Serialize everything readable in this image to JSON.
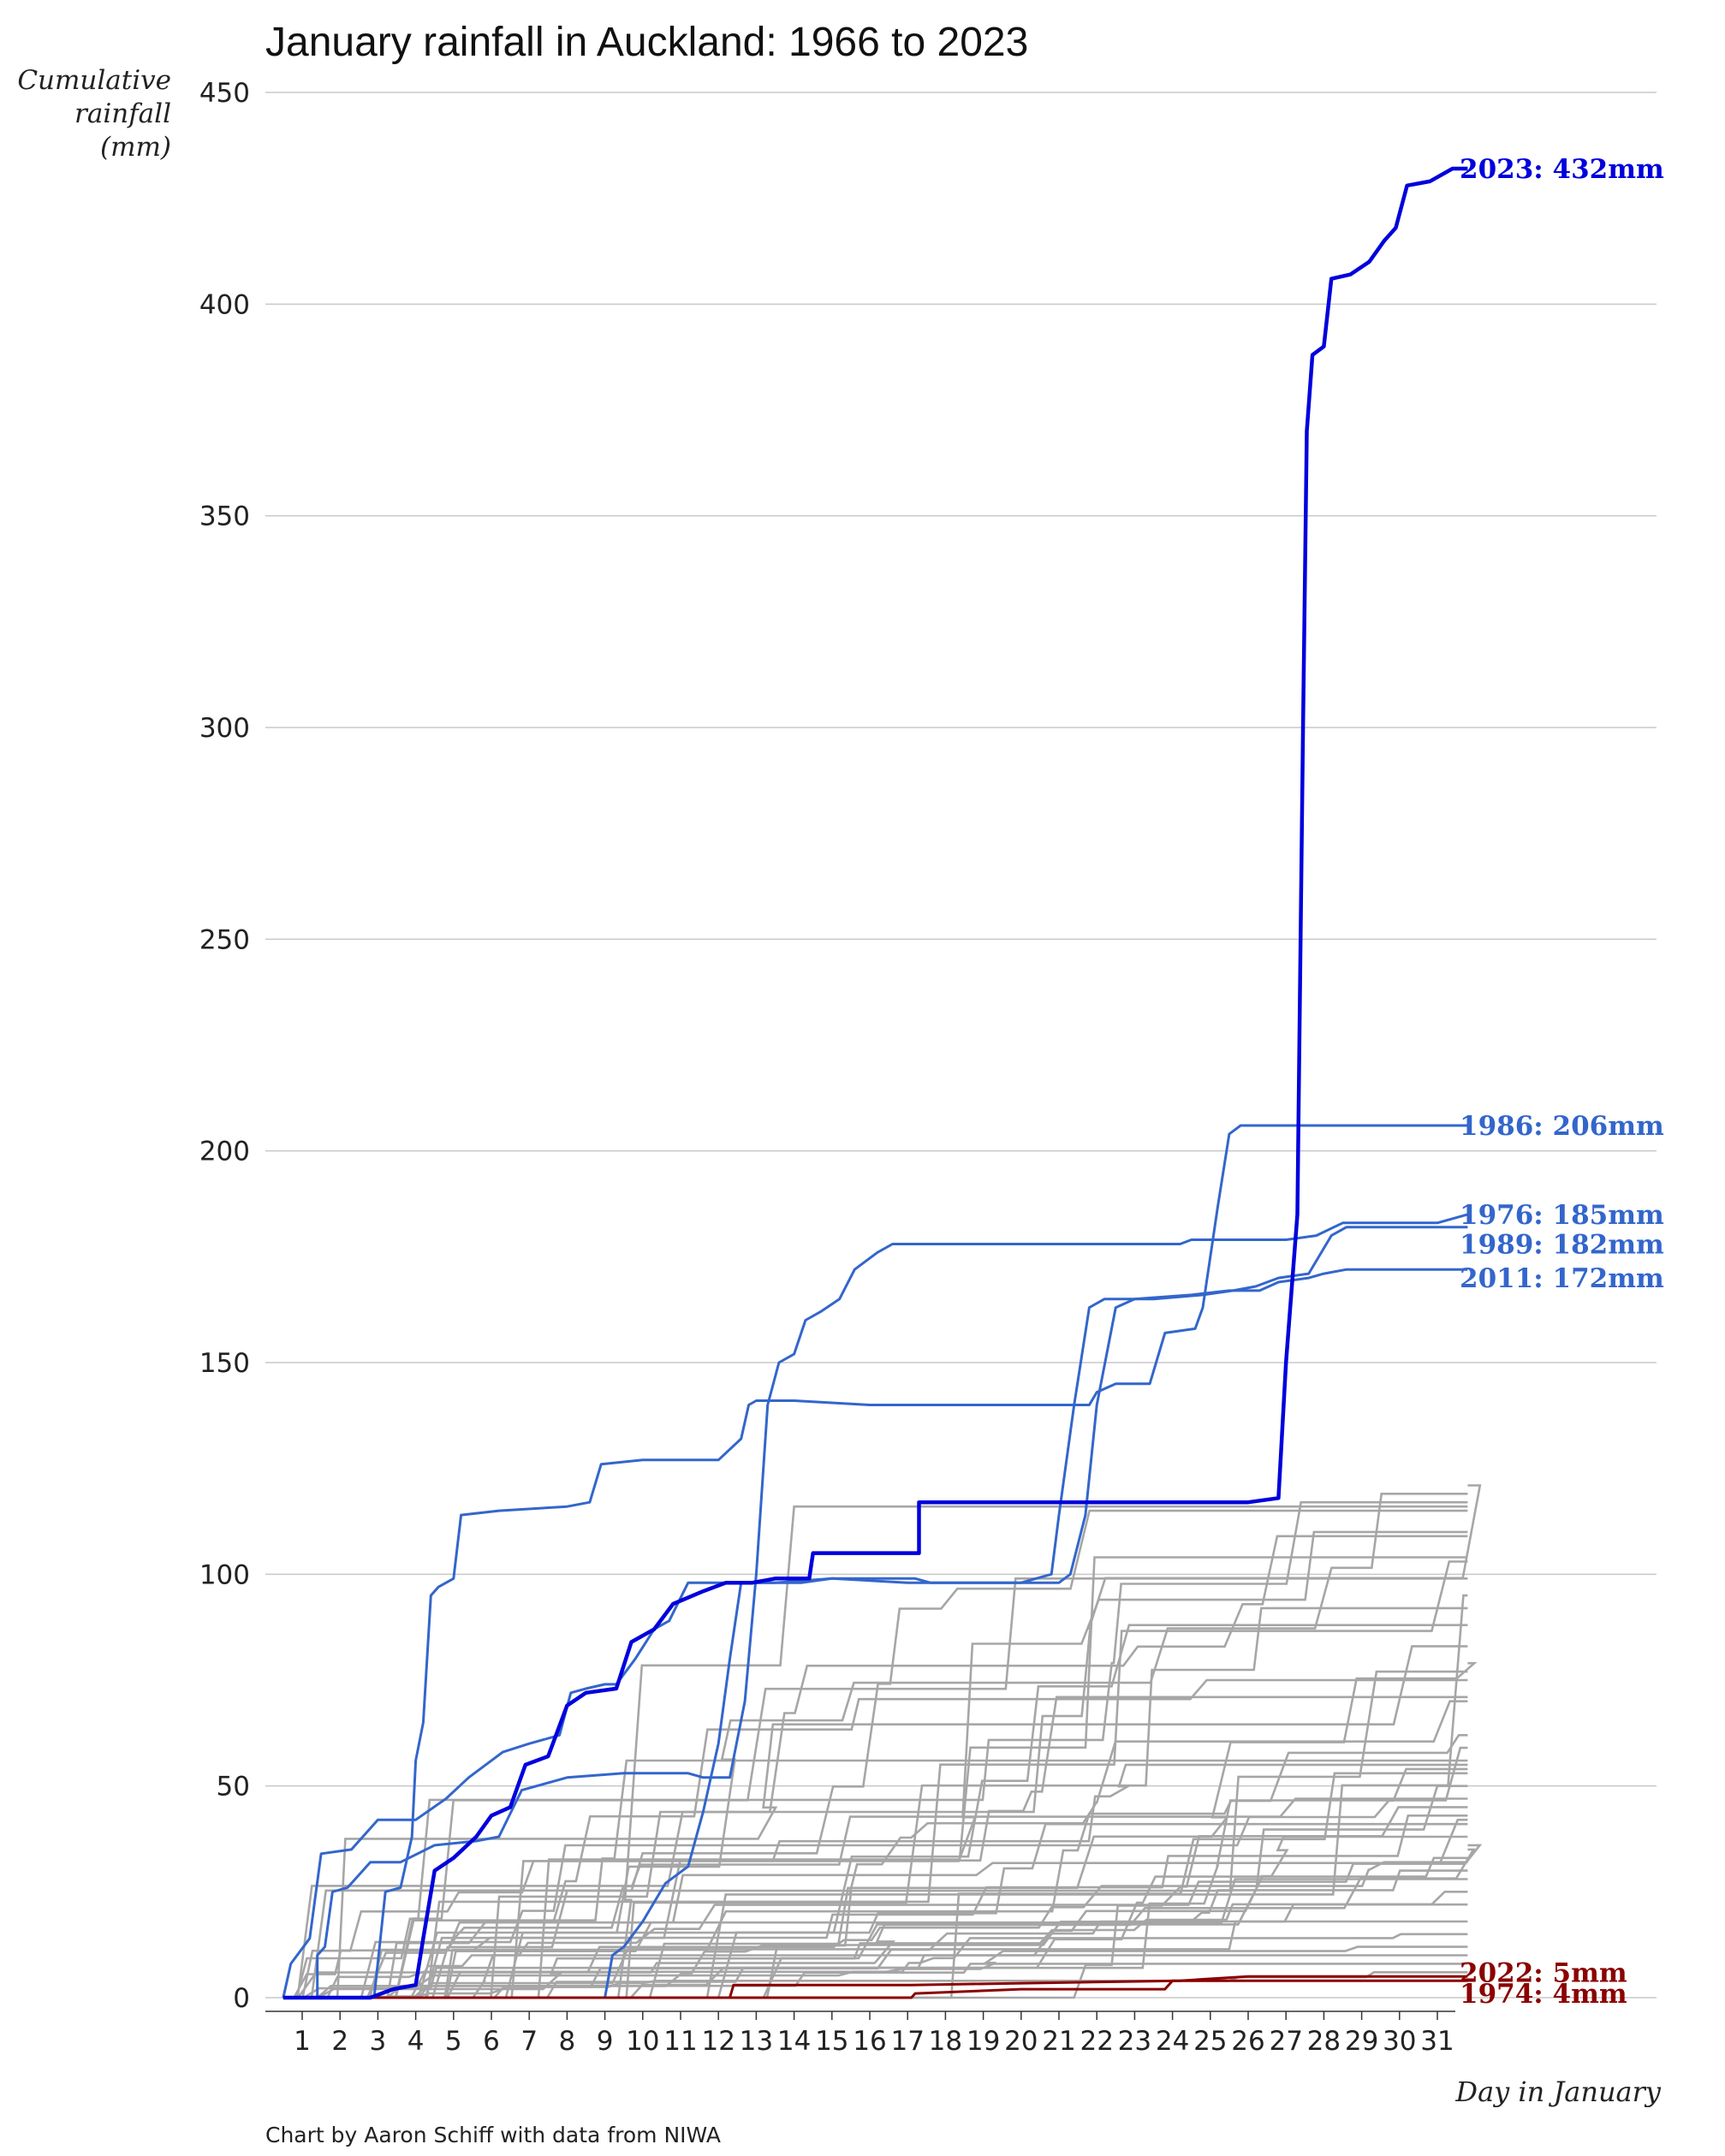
{
  "chart_data": {
    "type": "line",
    "title": "January rainfall in Auckland: 1966 to 2023",
    "ylabel": "Cumulative rainfall (mm)",
    "xlabel": "Day in January",
    "ylim": [
      0,
      450
    ],
    "xlim": [
      0.5,
      32
    ],
    "y_ticks": [
      0,
      50,
      100,
      150,
      200,
      250,
      300,
      350,
      400,
      450
    ],
    "x_ticks": [
      1,
      2,
      3,
      4,
      5,
      6,
      7,
      8,
      9,
      10,
      11,
      12,
      13,
      14,
      15,
      16,
      17,
      18,
      19,
      20,
      21,
      22,
      23,
      24,
      25,
      26,
      27,
      28,
      29,
      30,
      31
    ],
    "grid": true,
    "legend": "none",
    "colors": {
      "grey": "#a6a6a6",
      "blue": "#3366cc",
      "highlight_blue": "#0000dd",
      "dark_red": "#8b0000",
      "gridline": "#c8c8c8"
    },
    "highlighted_series": [
      {
        "name": "2023",
        "label": "2023: 432mm",
        "color": "#0000dd",
        "points": [
          [
            0.5,
            0
          ],
          [
            2.8,
            0
          ],
          [
            3.4,
            2
          ],
          [
            4.0,
            3
          ],
          [
            4.2,
            14
          ],
          [
            4.5,
            30
          ],
          [
            5.0,
            33
          ],
          [
            5.6,
            38
          ],
          [
            6.0,
            43
          ],
          [
            6.5,
            45
          ],
          [
            6.9,
            55
          ],
          [
            7.5,
            57
          ],
          [
            8.0,
            69
          ],
          [
            8.5,
            72
          ],
          [
            9.3,
            73
          ],
          [
            9.7,
            84
          ],
          [
            10.3,
            87
          ],
          [
            10.8,
            93
          ],
          [
            11.6,
            96
          ],
          [
            12.2,
            98
          ],
          [
            12.9,
            98
          ],
          [
            13.5,
            99
          ],
          [
            14.4,
            99
          ],
          [
            14.5,
            105
          ],
          [
            16.2,
            105
          ],
          [
            17.3,
            105
          ],
          [
            17.3,
            117
          ],
          [
            19.0,
            117
          ],
          [
            26.0,
            117
          ],
          [
            26.8,
            118
          ],
          [
            27.0,
            150
          ],
          [
            27.3,
            185
          ],
          [
            27.45,
            300
          ],
          [
            27.55,
            370
          ],
          [
            27.7,
            388
          ],
          [
            28.0,
            390
          ],
          [
            28.2,
            406
          ],
          [
            28.7,
            407
          ],
          [
            29.2,
            410
          ],
          [
            29.6,
            415
          ],
          [
            29.9,
            418
          ],
          [
            30.2,
            428
          ],
          [
            30.8,
            429
          ],
          [
            31.4,
            432
          ],
          [
            31.8,
            432
          ]
        ]
      },
      {
        "name": "1986",
        "label": "1986: 206mm",
        "color": "#3366cc",
        "points": [
          [
            0.5,
            0
          ],
          [
            2.9,
            0
          ],
          [
            3.2,
            25
          ],
          [
            3.6,
            26
          ],
          [
            3.9,
            38
          ],
          [
            4.0,
            56
          ],
          [
            4.2,
            65
          ],
          [
            4.4,
            95
          ],
          [
            4.6,
            97
          ],
          [
            5.0,
            99
          ],
          [
            5.2,
            114
          ],
          [
            6.2,
            115
          ],
          [
            8.0,
            116
          ],
          [
            8.6,
            117
          ],
          [
            8.9,
            126
          ],
          [
            10.0,
            127
          ],
          [
            12.0,
            127
          ],
          [
            12.6,
            132
          ],
          [
            12.8,
            140
          ],
          [
            13.0,
            141
          ],
          [
            14.0,
            141
          ],
          [
            16.0,
            140
          ],
          [
            20.0,
            140
          ],
          [
            21.8,
            140
          ],
          [
            22.0,
            143
          ],
          [
            22.5,
            145
          ],
          [
            23.4,
            145
          ],
          [
            23.8,
            157
          ],
          [
            24.6,
            158
          ],
          [
            24.8,
            163
          ],
          [
            25.2,
            187
          ],
          [
            25.5,
            204
          ],
          [
            25.8,
            206
          ],
          [
            26.4,
            206
          ],
          [
            31.8,
            206
          ]
        ]
      },
      {
        "name": "1976",
        "label": "1976: 185mm",
        "color": "#3366cc",
        "points": [
          [
            0.5,
            0
          ],
          [
            1.4,
            0
          ],
          [
            1.4,
            10
          ],
          [
            1.6,
            12
          ],
          [
            1.8,
            25
          ],
          [
            2.2,
            26
          ],
          [
            2.4,
            28
          ],
          [
            2.8,
            32
          ],
          [
            3.6,
            32
          ],
          [
            4.5,
            36
          ],
          [
            5.6,
            37
          ],
          [
            6.2,
            38
          ],
          [
            6.8,
            49
          ],
          [
            8.0,
            52
          ],
          [
            9.5,
            53
          ],
          [
            11.2,
            53
          ],
          [
            11.6,
            52
          ],
          [
            12.3,
            52
          ],
          [
            12.7,
            70
          ],
          [
            13.0,
            100
          ],
          [
            13.3,
            140
          ],
          [
            13.6,
            150
          ],
          [
            14.0,
            152
          ],
          [
            14.3,
            160
          ],
          [
            14.7,
            162
          ],
          [
            15.2,
            165
          ],
          [
            15.6,
            172
          ],
          [
            16.2,
            176
          ],
          [
            16.6,
            178
          ],
          [
            18.0,
            178
          ],
          [
            22.0,
            178
          ],
          [
            24.2,
            178
          ],
          [
            24.5,
            179
          ],
          [
            27.0,
            179
          ],
          [
            27.8,
            180
          ],
          [
            28.5,
            183
          ],
          [
            31.0,
            183
          ],
          [
            31.8,
            185
          ]
        ]
      },
      {
        "name": "1989",
        "label": "1989: 182mm",
        "color": "#3366cc",
        "points": [
          [
            0.5,
            0
          ],
          [
            0.7,
            8
          ],
          [
            1.2,
            14
          ],
          [
            1.5,
            34
          ],
          [
            2.3,
            35
          ],
          [
            3.0,
            42
          ],
          [
            4.0,
            42
          ],
          [
            4.8,
            47
          ],
          [
            5.4,
            52
          ],
          [
            6.3,
            58
          ],
          [
            7.0,
            60
          ],
          [
            7.8,
            62
          ],
          [
            8.1,
            72
          ],
          [
            8.5,
            73
          ],
          [
            9.0,
            74
          ],
          [
            9.3,
            74
          ],
          [
            9.8,
            80
          ],
          [
            10.3,
            87
          ],
          [
            10.7,
            89
          ],
          [
            11.2,
            98
          ],
          [
            12.0,
            98
          ],
          [
            13.5,
            98
          ],
          [
            15.0,
            99
          ],
          [
            17.0,
            98
          ],
          [
            20.0,
            98
          ],
          [
            20.8,
            100
          ],
          [
            21.0,
            114
          ],
          [
            21.4,
            140
          ],
          [
            21.8,
            163
          ],
          [
            22.2,
            165
          ],
          [
            22.8,
            165
          ],
          [
            23.5,
            165
          ],
          [
            24.8,
            166
          ],
          [
            25.6,
            167
          ],
          [
            26.2,
            168
          ],
          [
            26.8,
            170
          ],
          [
            27.6,
            171
          ],
          [
            28.2,
            180
          ],
          [
            28.6,
            182
          ],
          [
            31.8,
            182
          ]
        ]
      },
      {
        "name": "2011",
        "label": "2011: 172mm",
        "color": "#3366cc",
        "points": [
          [
            0.5,
            0
          ],
          [
            9.0,
            0
          ],
          [
            9.2,
            10
          ],
          [
            9.5,
            12
          ],
          [
            10.0,
            18
          ],
          [
            10.6,
            27
          ],
          [
            11.2,
            31
          ],
          [
            11.6,
            44
          ],
          [
            12.0,
            60
          ],
          [
            12.3,
            80
          ],
          [
            12.6,
            98
          ],
          [
            13.0,
            98
          ],
          [
            14.2,
            98
          ],
          [
            15.0,
            99
          ],
          [
            17.2,
            99
          ],
          [
            17.6,
            98
          ],
          [
            18.0,
            98
          ],
          [
            20.0,
            98
          ],
          [
            21.0,
            98
          ],
          [
            21.3,
            100
          ],
          [
            21.7,
            114
          ],
          [
            22.0,
            140
          ],
          [
            22.5,
            163
          ],
          [
            23.0,
            165
          ],
          [
            24.5,
            166
          ],
          [
            25.5,
            167
          ],
          [
            26.3,
            167
          ],
          [
            26.8,
            169
          ],
          [
            27.6,
            170
          ],
          [
            28.0,
            171
          ],
          [
            28.6,
            172
          ],
          [
            31.8,
            172
          ]
        ]
      },
      {
        "name": "2022",
        "label": "2022: 5mm",
        "color": "#8b0000",
        "points": [
          [
            0.5,
            0
          ],
          [
            12.3,
            0
          ],
          [
            12.4,
            3
          ],
          [
            17.0,
            3
          ],
          [
            17.1,
            3
          ],
          [
            24.2,
            4
          ],
          [
            26.0,
            5
          ],
          [
            31.8,
            5
          ]
        ]
      },
      {
        "name": "1974",
        "label": "1974: 4mm",
        "color": "#8b0000",
        "points": [
          [
            0.5,
            0
          ],
          [
            17.1,
            0
          ],
          [
            17.2,
            1
          ],
          [
            20.0,
            2
          ],
          [
            23.8,
            2
          ],
          [
            24.0,
            4
          ],
          [
            31.8,
            4
          ]
        ]
      }
    ],
    "background_series_end_values": [
      121,
      119,
      117,
      116,
      115,
      110,
      109,
      104,
      103,
      99,
      95,
      92,
      88,
      83,
      79,
      77,
      75,
      71,
      70,
      62,
      59,
      56,
      55,
      54,
      53,
      50,
      47,
      45,
      43,
      42,
      41,
      38,
      36,
      35,
      33,
      32,
      30,
      28,
      25,
      22,
      18,
      15,
      12,
      10,
      8,
      6
    ],
    "background_series_color": "#a6a6a6"
  },
  "footer": {
    "source": "Chart by Aaron Schiff with data from NIWA"
  }
}
